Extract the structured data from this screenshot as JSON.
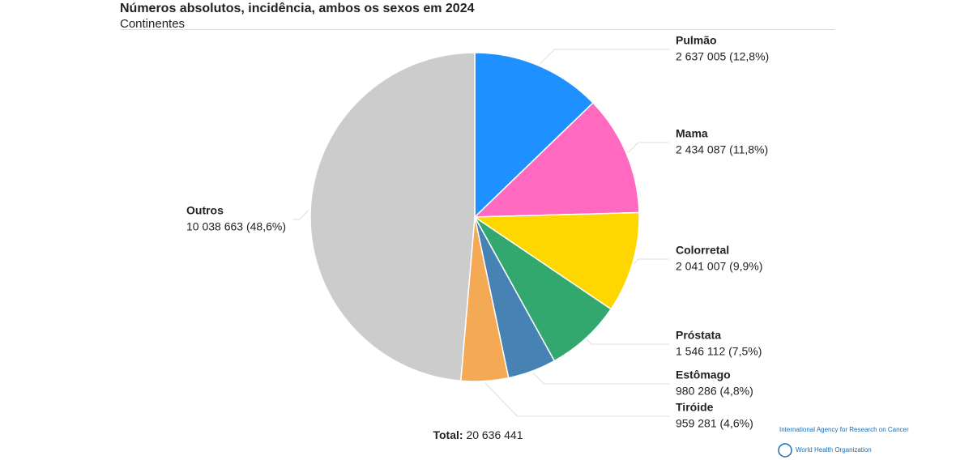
{
  "chart_data": {
    "type": "pie",
    "title": "Números absolutos, incidência, ambos os sexos em 2024",
    "subtitle": "Continentes",
    "categories": [
      "Pulmão",
      "Mama",
      "Colorretal",
      "Próstata",
      "Estômago",
      "Tiróide",
      "Outros"
    ],
    "values": [
      2637005,
      2434087,
      2041007,
      1546112,
      980286,
      959281,
      10038663
    ],
    "value_labels": [
      "2 637 005 (12,8%)",
      "2 434 087 (11,8%)",
      "2 041 007 (9,9%)",
      "1 546 112 (7,5%)",
      "980 286 (4,8%)",
      "959 281 (4,6%)",
      "10 038 663 (48,6%)"
    ],
    "colors": [
      "#1e90ff",
      "#ff69c0",
      "#ffd700",
      "#33a86e",
      "#4682b4",
      "#f4a955",
      "#cccccc"
    ],
    "total_label": "Total:",
    "total": {
      "value": 20636441,
      "label": "20 636 441"
    },
    "logos": [
      "International Agency for Research on Cancer",
      "World Health Organization"
    ]
  }
}
